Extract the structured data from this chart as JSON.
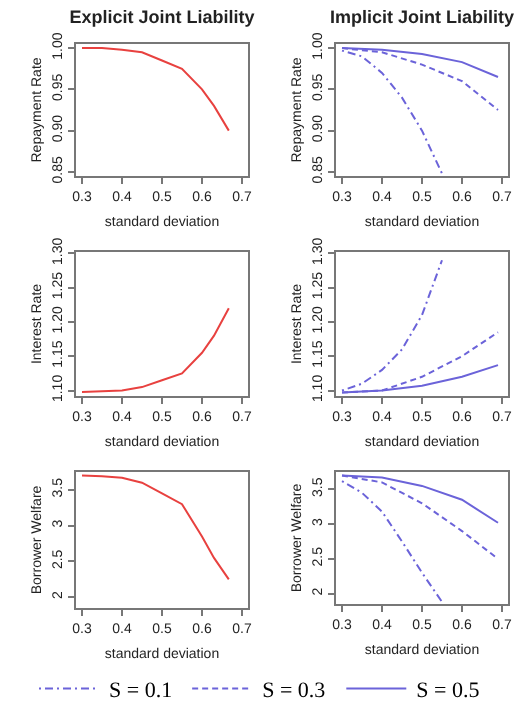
{
  "chart_data": [
    {
      "type": "line",
      "title": "Explicit Joint Liability",
      "xlabel": "standard deviation",
      "ylabel": "Repayment Rate",
      "xlim": [
        0.285,
        0.715
      ],
      "xticks": [
        0.3,
        0.4,
        0.5,
        0.6,
        0.7
      ],
      "ylim": [
        0.845,
        1.005
      ],
      "yticks": [
        {
          "value": 0.85,
          "label": "0.85"
        },
        {
          "value": 0.9,
          "label": "0.90"
        },
        {
          "value": 0.95,
          "label": "0.95"
        },
        {
          "value": 1,
          "label": "1.00"
        }
      ],
      "grid": false,
      "marker": "none",
      "series": [
        {
          "color": "#e8413f",
          "line_style": "solid",
          "x": [
            0.3,
            0.35,
            0.4,
            0.45,
            0.5,
            0.55,
            0.6,
            0.63,
            0.667
          ],
          "values": [
            1.0,
            1.0,
            0.998,
            0.995,
            0.985,
            0.975,
            0.95,
            0.93,
            0.9
          ]
        }
      ]
    },
    {
      "type": "line",
      "title": "Implicit Joint Liability",
      "xlabel": "standard deviation",
      "ylabel": "Repayment Rate",
      "xlim": [
        0.285,
        0.715
      ],
      "xticks": [
        0.3,
        0.4,
        0.5,
        0.6,
        0.7
      ],
      "ylim": [
        0.845,
        1.005
      ],
      "yticks": [
        {
          "value": 0.85,
          "label": "0.85"
        },
        {
          "value": 0.9,
          "label": "0.90"
        },
        {
          "value": 0.95,
          "label": "0.95"
        },
        {
          "value": 1,
          "label": "1.00"
        }
      ],
      "grid": false,
      "marker": "none",
      "series": [
        {
          "color": "#6b63d9",
          "line_style": "dashdot",
          "x": [
            0.3,
            0.35,
            0.4,
            0.45,
            0.5,
            0.55
          ],
          "values": [
            0.997,
            0.99,
            0.97,
            0.94,
            0.9,
            0.848
          ]
        },
        {
          "color": "#6b63d9",
          "line_style": "dashed",
          "x": [
            0.3,
            0.4,
            0.5,
            0.6,
            0.69
          ],
          "values": [
            1.0,
            0.995,
            0.98,
            0.96,
            0.925
          ]
        },
        {
          "color": "#6b63d9",
          "line_style": "solid",
          "x": [
            0.3,
            0.4,
            0.5,
            0.6,
            0.69
          ],
          "values": [
            1.0,
            0.998,
            0.993,
            0.983,
            0.965
          ]
        }
      ]
    },
    {
      "type": "line",
      "xlabel": "standard deviation",
      "ylabel": "Interest Rate",
      "xlim": [
        0.285,
        0.715
      ],
      "xticks": [
        0.3,
        0.4,
        0.5,
        0.6,
        0.7
      ],
      "ylim": [
        1.092,
        1.302
      ],
      "yticks": [
        {
          "value": 1.1,
          "label": "1.10"
        },
        1.15,
        {
          "value": 1.2,
          "label": "1.20"
        },
        1.25,
        {
          "value": 1.3,
          "label": "1.30"
        }
      ],
      "grid": false,
      "marker": "none",
      "series": [
        {
          "color": "#e8413f",
          "line_style": "solid",
          "x": [
            0.3,
            0.35,
            0.4,
            0.45,
            0.5,
            0.55,
            0.6,
            0.63,
            0.667
          ],
          "values": [
            1.098,
            1.099,
            1.1,
            1.105,
            1.115,
            1.125,
            1.155,
            1.18,
            1.22
          ]
        }
      ]
    },
    {
      "type": "line",
      "xlabel": "standard deviation",
      "ylabel": "Interest Rate",
      "xlim": [
        0.285,
        0.715
      ],
      "xticks": [
        0.3,
        0.4,
        0.5,
        0.6,
        0.7
      ],
      "ylim": [
        1.092,
        1.302
      ],
      "yticks": [
        {
          "value": 1.1,
          "label": "1.10"
        },
        1.15,
        {
          "value": 1.2,
          "label": "1.20"
        },
        1.25,
        {
          "value": 1.3,
          "label": "1.30"
        }
      ],
      "grid": false,
      "marker": "none",
      "series": [
        {
          "color": "#6b63d9",
          "line_style": "dashdot",
          "x": [
            0.3,
            0.35,
            0.4,
            0.45,
            0.5,
            0.55
          ],
          "values": [
            1.1,
            1.11,
            1.13,
            1.16,
            1.21,
            1.29
          ]
        },
        {
          "color": "#6b63d9",
          "line_style": "dashed",
          "x": [
            0.3,
            0.4,
            0.5,
            0.6,
            0.69
          ],
          "values": [
            1.097,
            1.1,
            1.12,
            1.15,
            1.185
          ]
        },
        {
          "color": "#6b63d9",
          "line_style": "solid",
          "x": [
            0.3,
            0.4,
            0.5,
            0.6,
            0.69
          ],
          "values": [
            1.097,
            1.1,
            1.107,
            1.12,
            1.137
          ]
        }
      ]
    },
    {
      "type": "line",
      "xlabel": "standard deviation",
      "ylabel": "Borrower Welfare",
      "xlim": [
        0.285,
        0.715
      ],
      "xticks": [
        0.3,
        0.4,
        0.5,
        0.6,
        0.7
      ],
      "ylim": [
        1.85,
        3.75
      ],
      "yticks": [
        2.0,
        2.5,
        3.0,
        3.5
      ],
      "grid": false,
      "marker": "none",
      "series": [
        {
          "color": "#e8413f",
          "line_style": "solid",
          "x": [
            0.3,
            0.35,
            0.4,
            0.45,
            0.5,
            0.55,
            0.6,
            0.63,
            0.667
          ],
          "values": [
            3.7,
            3.69,
            3.67,
            3.6,
            3.45,
            3.3,
            2.85,
            2.55,
            2.25
          ]
        }
      ]
    },
    {
      "type": "line",
      "xlabel": "standard deviation",
      "ylabel": "Borrower Welfare",
      "xlim": [
        0.285,
        0.715
      ],
      "xticks": [
        0.3,
        0.4,
        0.5,
        0.6,
        0.7
      ],
      "ylim": [
        1.85,
        3.75
      ],
      "yticks": [
        2.0,
        2.5,
        3.0,
        3.5
      ],
      "grid": false,
      "marker": "none",
      "legend": "bottom",
      "series": [
        {
          "name": "S = 0.1",
          "color": "#6b63d9",
          "line_style": "dashdot",
          "x": [
            0.3,
            0.35,
            0.4,
            0.45,
            0.5,
            0.55
          ],
          "values": [
            3.62,
            3.45,
            3.18,
            2.75,
            2.3,
            1.88
          ]
        },
        {
          "name": "S = 0.3",
          "color": "#6b63d9",
          "line_style": "dashed",
          "x": [
            0.3,
            0.4,
            0.5,
            0.6,
            0.69
          ],
          "values": [
            3.7,
            3.6,
            3.3,
            2.9,
            2.5
          ]
        },
        {
          "name": "S = 0.5",
          "color": "#6b63d9",
          "line_style": "solid",
          "x": [
            0.3,
            0.4,
            0.5,
            0.6,
            0.69
          ],
          "values": [
            3.7,
            3.67,
            3.55,
            3.35,
            3.02
          ]
        }
      ]
    }
  ]
}
